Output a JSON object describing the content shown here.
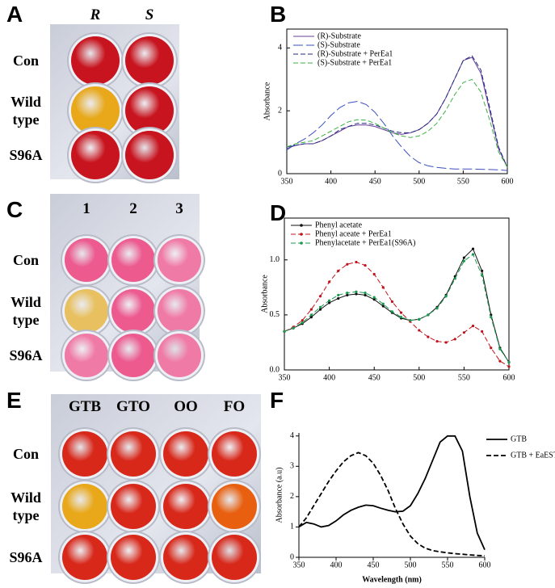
{
  "panel_labels": [
    "A",
    "B",
    "C",
    "D",
    "E",
    "F"
  ],
  "plates": [
    {
      "columns": [
        "R",
        "S"
      ],
      "rows": [
        "Con",
        "Wild type",
        "S96A"
      ]
    },
    {
      "columns": [
        "1",
        "2",
        "3"
      ],
      "rows": [
        "Con",
        "Wild type",
        "S96A"
      ]
    },
    {
      "columns": [
        "GTB",
        "GTO",
        "OO",
        "FO"
      ],
      "rows": [
        "Con",
        "Wild type",
        "S96A"
      ]
    }
  ],
  "chart_data": [
    {
      "type": "line",
      "ylabel": "Absorbance",
      "legend": "upper left",
      "frame": true,
      "x": [
        350,
        360,
        370,
        380,
        390,
        400,
        410,
        420,
        430,
        440,
        450,
        460,
        470,
        480,
        490,
        500,
        510,
        520,
        530,
        540,
        550,
        560,
        570,
        580,
        590,
        600
      ],
      "xlim": [
        350,
        600
      ],
      "xticks": [
        350,
        400,
        450,
        500,
        550,
        600
      ],
      "ylim": [
        0,
        4.6
      ],
      "yticks": [
        0,
        2,
        4
      ],
      "series": [
        {
          "name": "(R)-Substrate",
          "color": "#6a3d9a",
          "dash": "solid",
          "values": [
            0.8,
            0.9,
            0.95,
            0.95,
            1.05,
            1.2,
            1.35,
            1.5,
            1.55,
            1.55,
            1.5,
            1.4,
            1.3,
            1.25,
            1.3,
            1.4,
            1.6,
            1.9,
            2.4,
            3.0,
            3.6,
            3.7,
            3.2,
            2.0,
            0.8,
            0.2
          ]
        },
        {
          "name": "(S)-Substrate",
          "color": "#3a4fc0",
          "dash": "long",
          "values": [
            0.75,
            0.95,
            1.1,
            1.3,
            1.55,
            1.85,
            2.1,
            2.25,
            2.3,
            2.2,
            1.95,
            1.6,
            1.2,
            0.85,
            0.55,
            0.35,
            0.25,
            0.2,
            0.17,
            0.15,
            0.15,
            0.15,
            0.14,
            0.13,
            0.12,
            0.1
          ]
        },
        {
          "name": "(R)-Substrate + PerEa1",
          "color": "#1f2a7a",
          "dash": "dashed",
          "values": [
            0.85,
            0.9,
            0.95,
            0.95,
            1.05,
            1.2,
            1.4,
            1.5,
            1.6,
            1.6,
            1.55,
            1.45,
            1.35,
            1.3,
            1.3,
            1.4,
            1.6,
            1.9,
            2.4,
            3.0,
            3.6,
            3.75,
            3.3,
            2.1,
            0.85,
            0.2
          ]
        },
        {
          "name": "(S)-Substrate + PerEa1",
          "color": "#3cb043",
          "dash": "dashed",
          "values": [
            0.85,
            0.95,
            1.0,
            1.05,
            1.2,
            1.35,
            1.5,
            1.65,
            1.72,
            1.7,
            1.6,
            1.45,
            1.3,
            1.2,
            1.15,
            1.2,
            1.35,
            1.6,
            2.0,
            2.5,
            2.9,
            3.0,
            2.6,
            1.7,
            0.7,
            0.2
          ]
        }
      ]
    },
    {
      "type": "line",
      "ylabel": "Absorbance",
      "legend": "upper left",
      "frame": true,
      "x": [
        350,
        360,
        370,
        380,
        390,
        400,
        410,
        420,
        430,
        440,
        450,
        460,
        470,
        480,
        490,
        500,
        510,
        520,
        530,
        540,
        550,
        560,
        570,
        580,
        590,
        600
      ],
      "xlim": [
        350,
        600
      ],
      "xticks": [
        350,
        400,
        450,
        500,
        550,
        600
      ],
      "ylim": [
        0,
        1.38
      ],
      "yticks": [
        {
          "value": 0,
          "label": "0.0"
        },
        0.5,
        {
          "value": 1,
          "label": "1.0"
        }
      ],
      "series": [
        {
          "name": "Phenyl acetate",
          "color": "#111111",
          "dash": "solid",
          "marker": "circle",
          "values": [
            0.35,
            0.38,
            0.42,
            0.48,
            0.55,
            0.61,
            0.65,
            0.68,
            0.69,
            0.68,
            0.64,
            0.58,
            0.52,
            0.47,
            0.45,
            0.46,
            0.5,
            0.57,
            0.68,
            0.85,
            1.02,
            1.1,
            0.9,
            0.5,
            0.2,
            0.07
          ]
        },
        {
          "name": "Phenyl aceate + PerEa1",
          "color": "#c0141c",
          "dash": "dashed",
          "marker": "circle",
          "values": [
            0.35,
            0.39,
            0.45,
            0.55,
            0.67,
            0.8,
            0.9,
            0.96,
            0.98,
            0.95,
            0.87,
            0.75,
            0.62,
            0.52,
            0.44,
            0.36,
            0.3,
            0.26,
            0.25,
            0.28,
            0.34,
            0.4,
            0.35,
            0.2,
            0.08,
            0.03
          ]
        },
        {
          "name": "Phenylacetate + PerEa1(S96A)",
          "color": "#1a9a50",
          "dash": "dashed",
          "marker": "circle",
          "values": [
            0.35,
            0.38,
            0.43,
            0.5,
            0.57,
            0.63,
            0.68,
            0.7,
            0.71,
            0.7,
            0.66,
            0.6,
            0.53,
            0.48,
            0.45,
            0.46,
            0.5,
            0.56,
            0.67,
            0.83,
            0.99,
            1.05,
            0.86,
            0.48,
            0.19,
            0.07
          ]
        }
      ]
    },
    {
      "type": "line",
      "xlabel": "Wavelength (nm)",
      "ylabel": "Absorbance (a.u)",
      "legend": "outside right",
      "frame": false,
      "x": [
        350,
        360,
        370,
        380,
        390,
        400,
        410,
        420,
        430,
        440,
        450,
        460,
        470,
        480,
        490,
        500,
        510,
        520,
        530,
        540,
        550,
        560,
        570,
        580,
        590,
        600
      ],
      "xlim": [
        350,
        600
      ],
      "xticks": [
        350,
        400,
        450,
        500,
        550,
        600
      ],
      "ylim": [
        0,
        4.1
      ],
      "yticks": [
        0,
        1,
        2,
        3,
        4
      ],
      "series": [
        {
          "name": "GTB",
          "color": "#000000",
          "dash": "solid",
          "values": [
            1.0,
            1.15,
            1.1,
            1.0,
            1.05,
            1.2,
            1.4,
            1.55,
            1.65,
            1.72,
            1.7,
            1.62,
            1.55,
            1.5,
            1.52,
            1.7,
            2.1,
            2.6,
            3.2,
            3.8,
            4.0,
            4.0,
            3.5,
            2.0,
            0.8,
            0.25
          ]
        },
        {
          "name": "GTB + EaEST",
          "color": "#000000",
          "dash": "dashed",
          "values": [
            1.0,
            1.3,
            1.7,
            2.1,
            2.5,
            2.85,
            3.15,
            3.35,
            3.45,
            3.35,
            3.1,
            2.7,
            2.2,
            1.6,
            1.1,
            0.7,
            0.45,
            0.3,
            0.22,
            0.18,
            0.15,
            0.12,
            0.1,
            0.08,
            0.06,
            0.05
          ]
        }
      ]
    }
  ]
}
